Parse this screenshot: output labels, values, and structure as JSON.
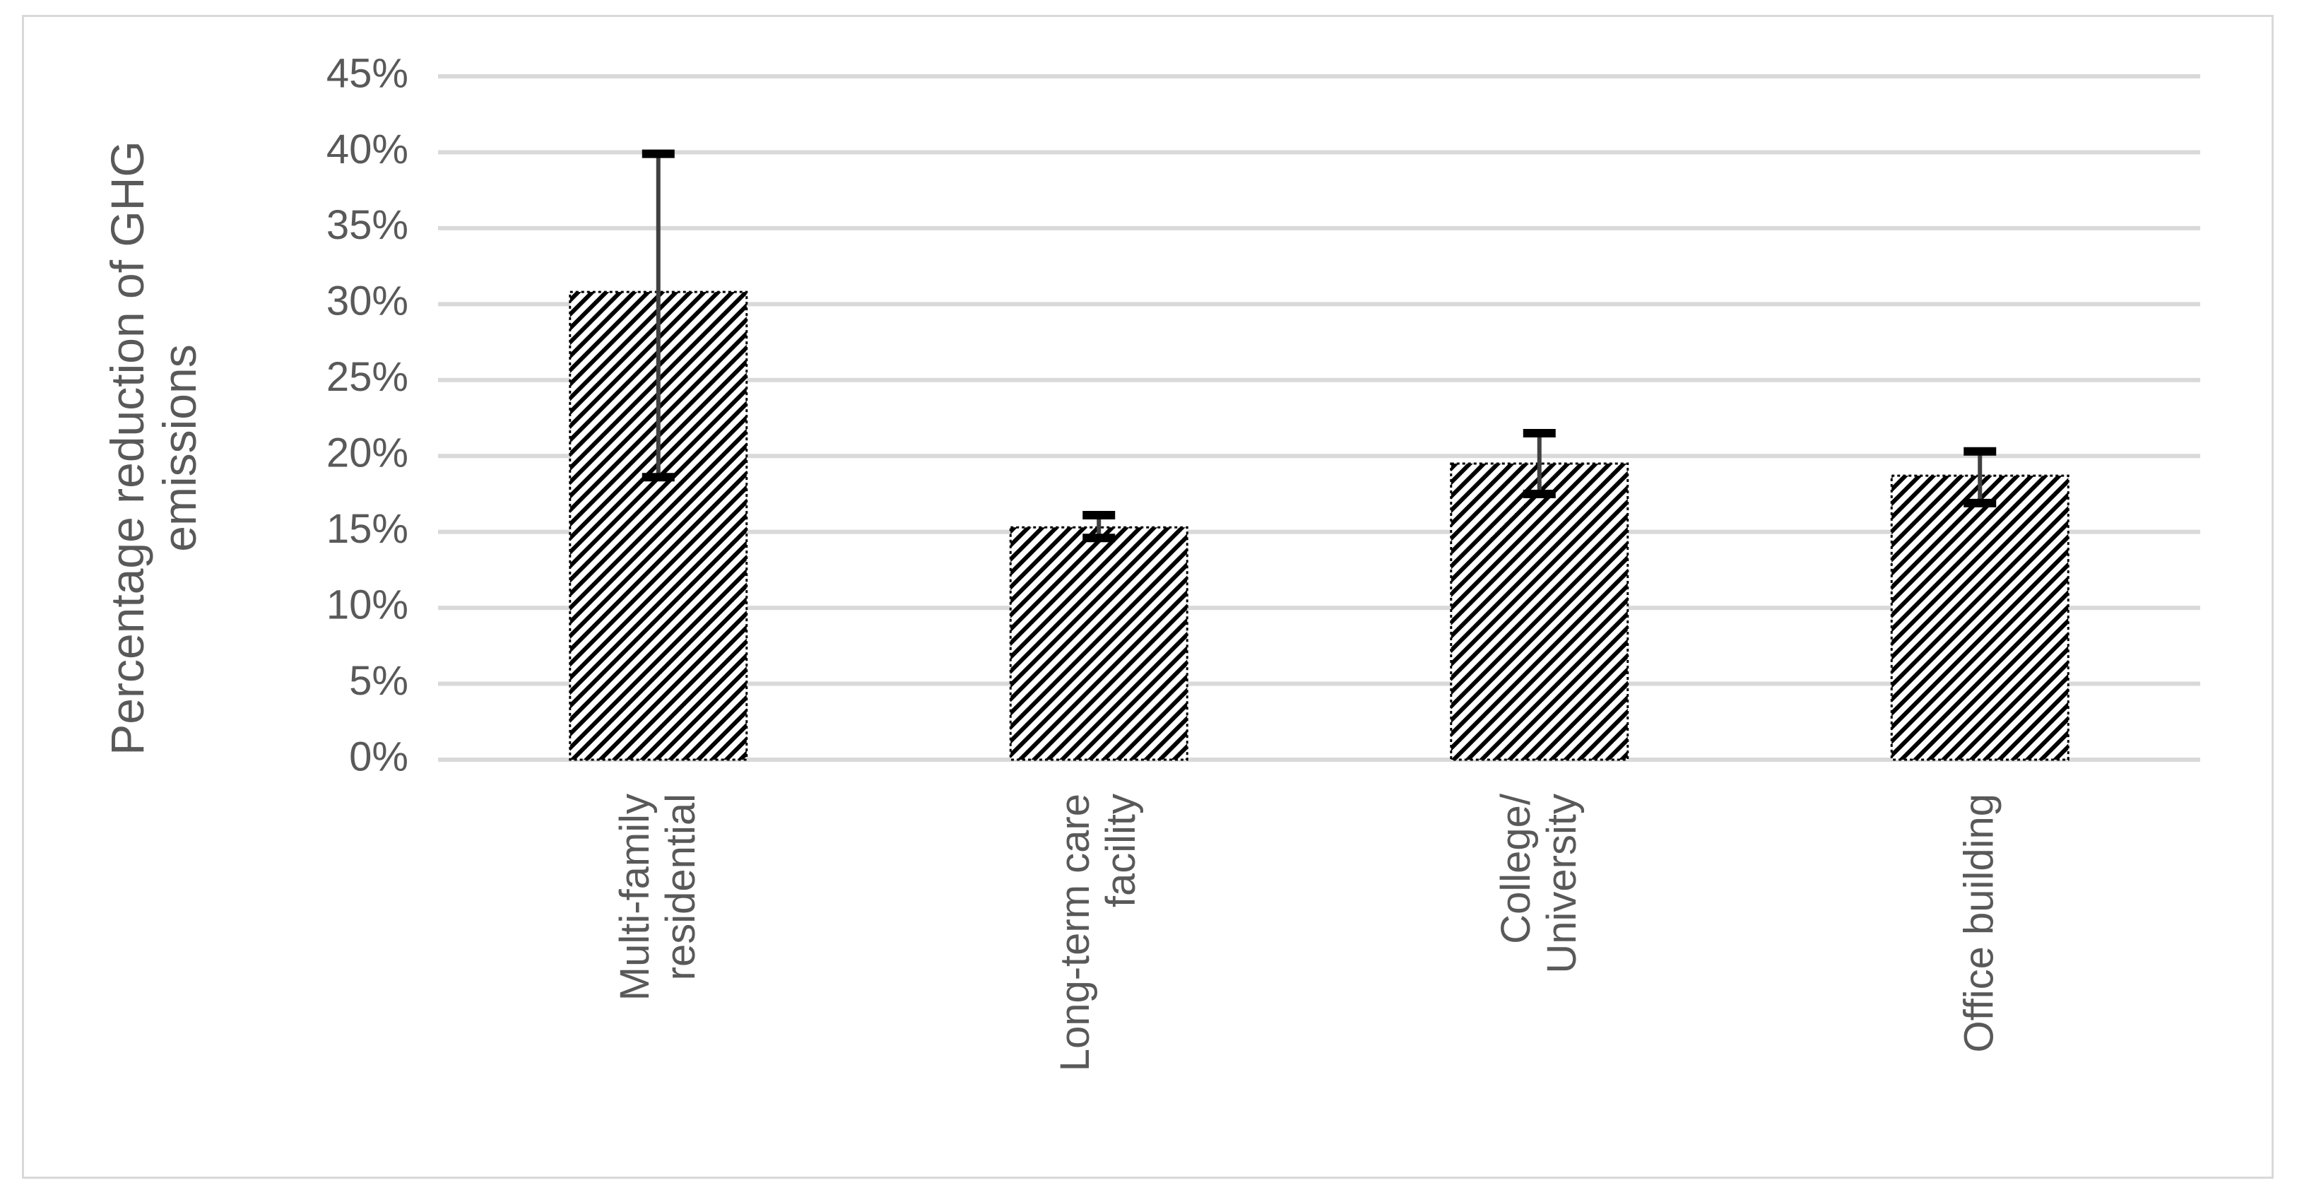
{
  "chart_data": {
    "type": "bar",
    "y_label": "Percentage reduction of GHG\nemissions",
    "categories": [
      "Multi-family\nresidential",
      "Long-term care\nfacility",
      "College/\nUniversity",
      "Office building"
    ],
    "values": [
      30.8,
      15.3,
      19.5,
      18.7
    ],
    "error_low": [
      18.6,
      14.6,
      17.5,
      16.9
    ],
    "error_high": [
      39.9,
      16.1,
      21.5,
      20.3
    ],
    "color": "#000000",
    "error_color": "#404040",
    "ylim": [
      0,
      45
    ],
    "yticks": [
      {
        "value": 0,
        "label": "0%"
      },
      {
        "value": 5,
        "label": "5%"
      },
      {
        "value": 10,
        "label": "10%"
      },
      {
        "value": 15,
        "label": "15%"
      },
      {
        "value": 20,
        "label": "20%"
      },
      {
        "value": 25,
        "label": "25%"
      },
      {
        "value": 30,
        "label": "30%"
      },
      {
        "value": 35,
        "label": "35%"
      },
      {
        "value": 40,
        "label": "40%"
      },
      {
        "value": 45,
        "label": "45%"
      }
    ],
    "grid": true
  }
}
